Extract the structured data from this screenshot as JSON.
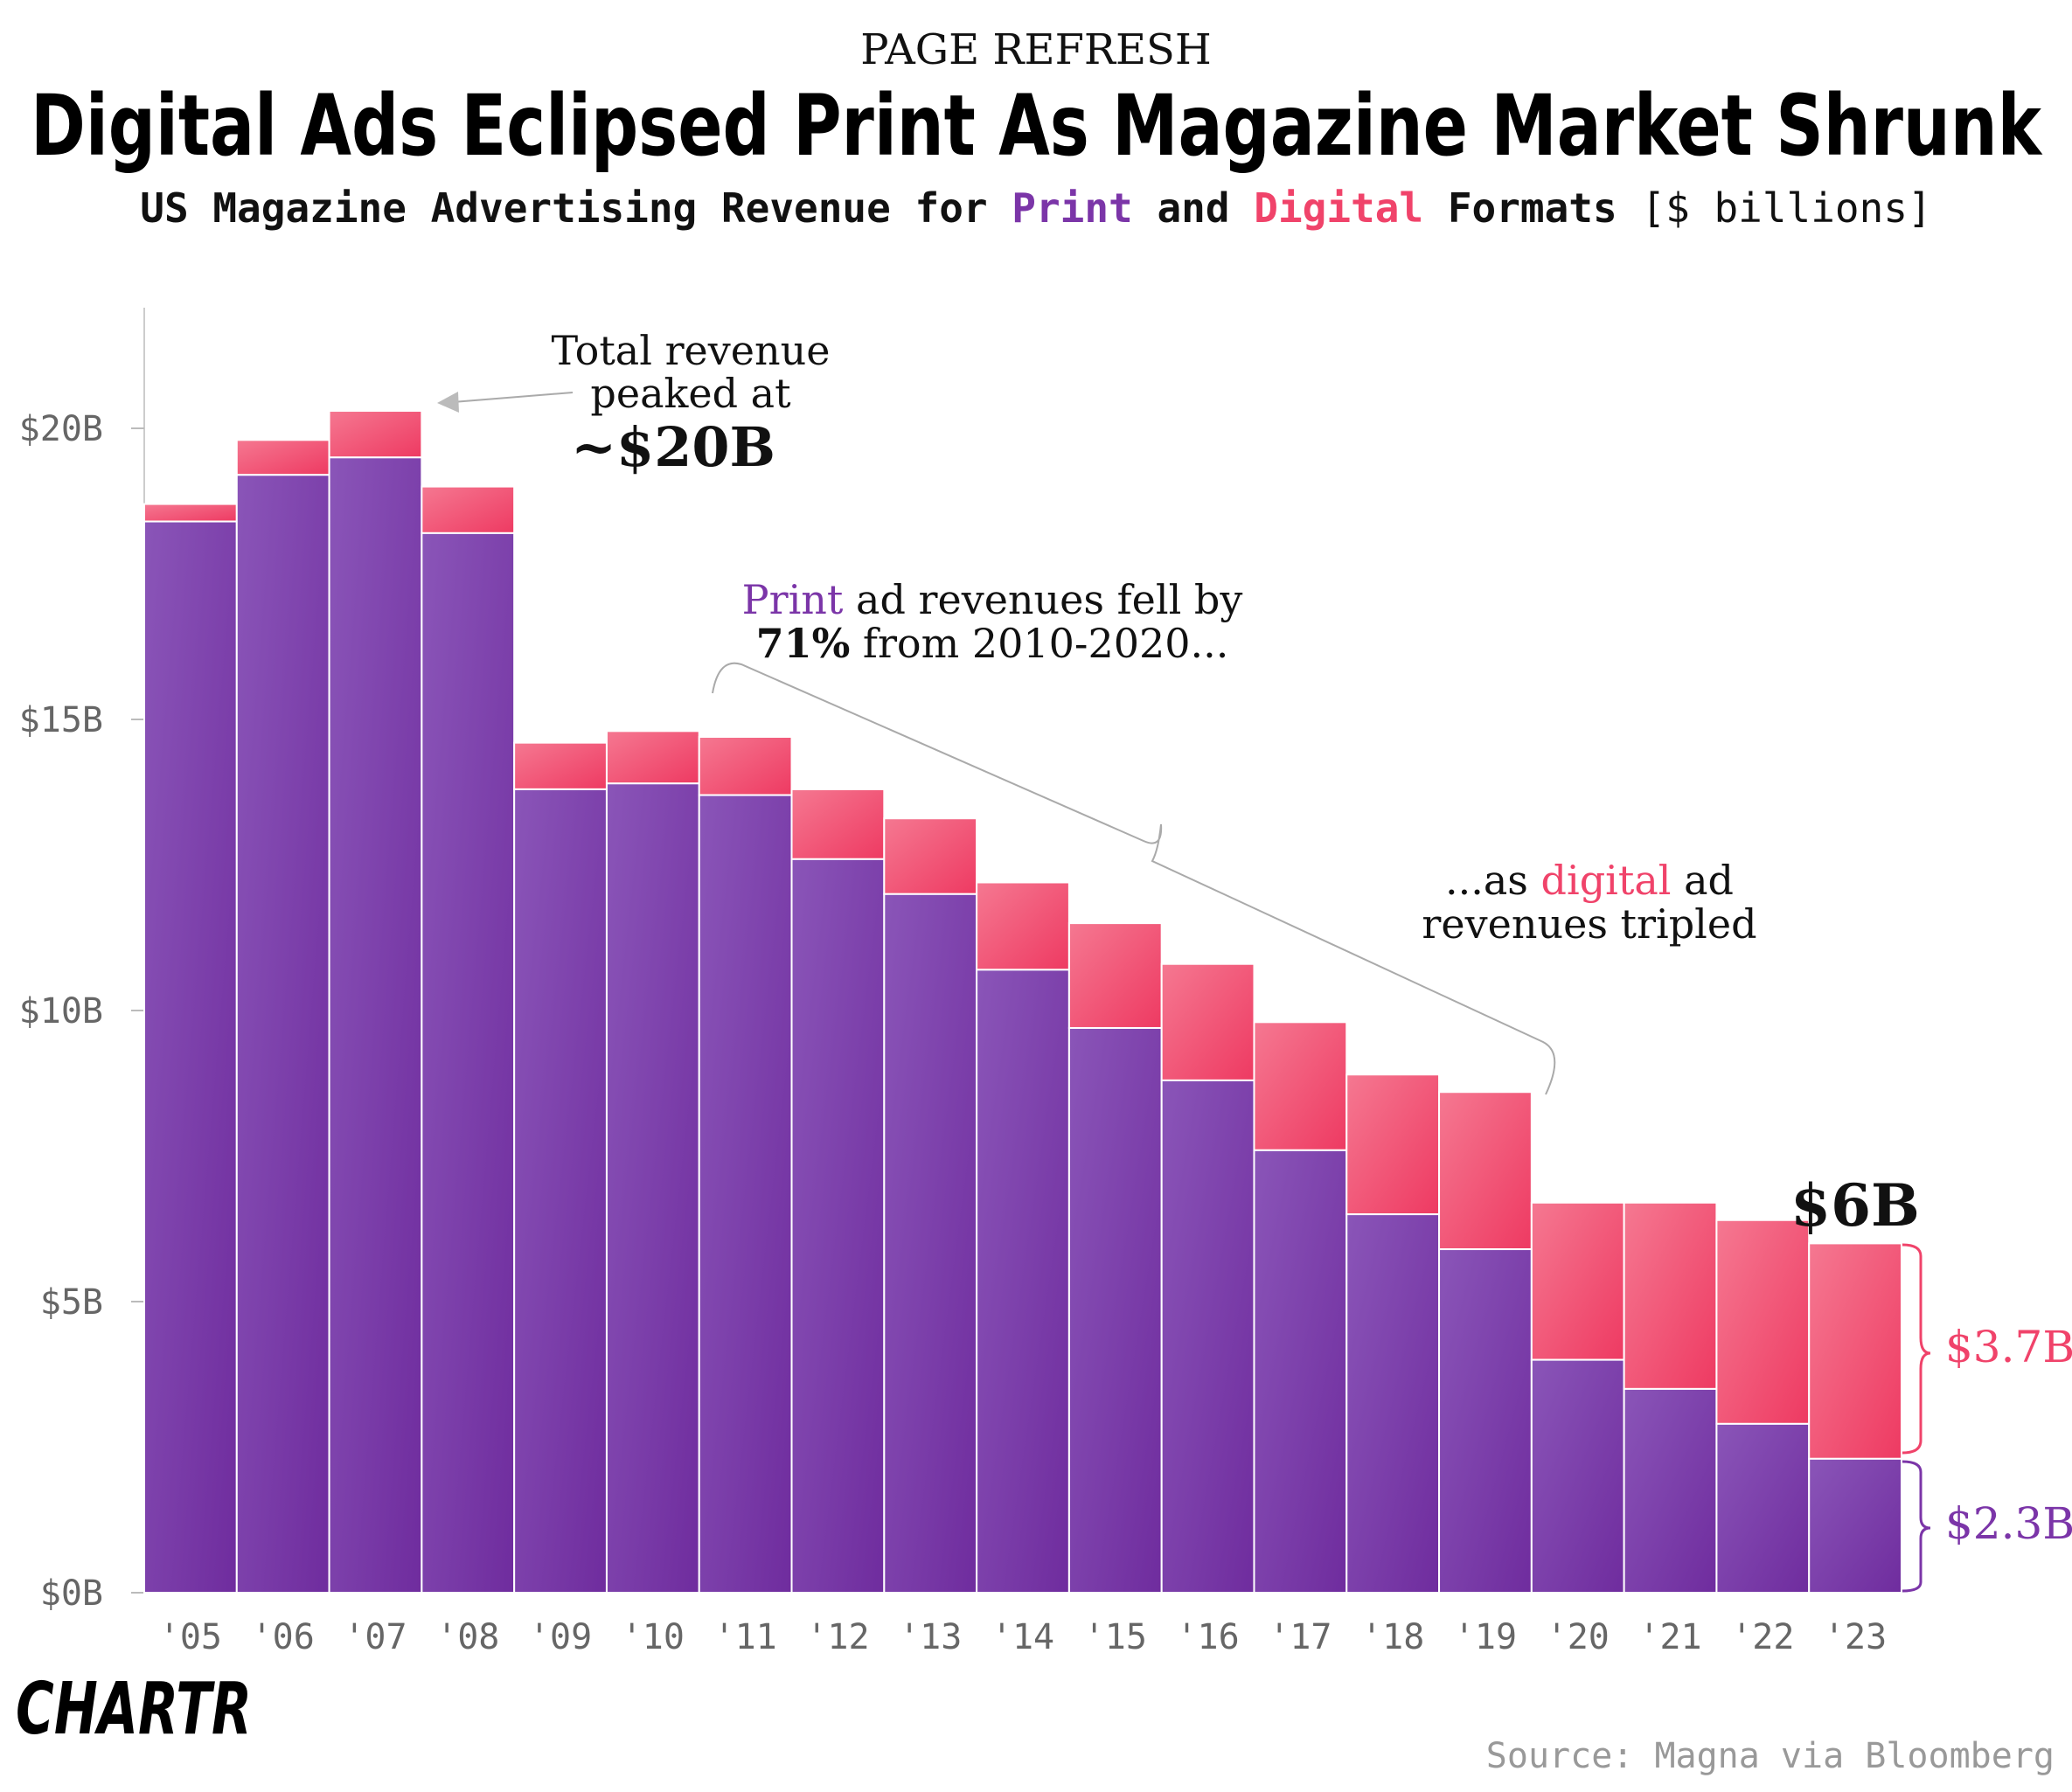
{
  "header": {
    "kicker": "PAGE REFRESH",
    "title": "Digital Ads Eclipsed Print As Magazine Market Shrunk",
    "subtitle": {
      "part1": "US Magazine Advertising Revenue for ",
      "print": "Print",
      "part2": " and ",
      "digital": "Digital",
      "part3": " Formats ",
      "units": "[$ billions]"
    }
  },
  "colors": {
    "print": "#7b35a8",
    "print_light": "#8a4fb5",
    "digital": "#f0436a",
    "digital_light": "#f36f8c",
    "axis_text": "#666666",
    "annotation_gray": "#aaaaaa",
    "text_dark": "#111111"
  },
  "chart_data": {
    "type": "bar",
    "stacked": true,
    "categories": [
      "'05",
      "'06",
      "'07",
      "'08",
      "'09",
      "'10",
      "'11",
      "'12",
      "'13",
      "'14",
      "'15",
      "'16",
      "'17",
      "'18",
      "'19",
      "'20",
      "'21",
      "'22",
      "'23"
    ],
    "series": [
      {
        "name": "Print",
        "color": "#7b35a8",
        "values": [
          18.4,
          19.2,
          19.5,
          18.2,
          13.8,
          13.9,
          13.7,
          12.6,
          12.0,
          10.7,
          9.7,
          8.8,
          7.6,
          6.5,
          5.9,
          4.0,
          3.5,
          2.9,
          2.3
        ]
      },
      {
        "name": "Digital",
        "color": "#f0436a",
        "values": [
          0.3,
          0.6,
          0.8,
          0.8,
          0.8,
          0.9,
          1.0,
          1.2,
          1.3,
          1.5,
          1.8,
          2.0,
          2.2,
          2.4,
          2.7,
          2.7,
          3.2,
          3.5,
          3.7
        ]
      }
    ],
    "y_ticks": [
      "$0B",
      "$5B",
      "$10B",
      "$15B",
      "$20B"
    ],
    "y_tick_values": [
      0,
      5,
      10,
      15,
      20
    ],
    "ylim": [
      0,
      22
    ],
    "grid": false,
    "legend": "none (colors explained in subtitle)"
  },
  "annotations": {
    "peak_line1": "Total revenue",
    "peak_line2": "peaked at",
    "peak_value": "~$20B",
    "fall_print": "Print",
    "fall_line1_rest": " ad revenues fell by",
    "fall_pct": "71%",
    "fall_line2_rest": " from 2010-2020...",
    "digital_line1_pre": "...as ",
    "digital_word": "digital",
    "digital_line1_post": " ad",
    "digital_line2": "revenues tripled",
    "total_2023": "$6B",
    "digital_2023": "$3.7B",
    "print_2023": "$2.3B"
  },
  "footer": {
    "logo": "CHARTR",
    "source": "Source: Magna via Bloomberg"
  }
}
